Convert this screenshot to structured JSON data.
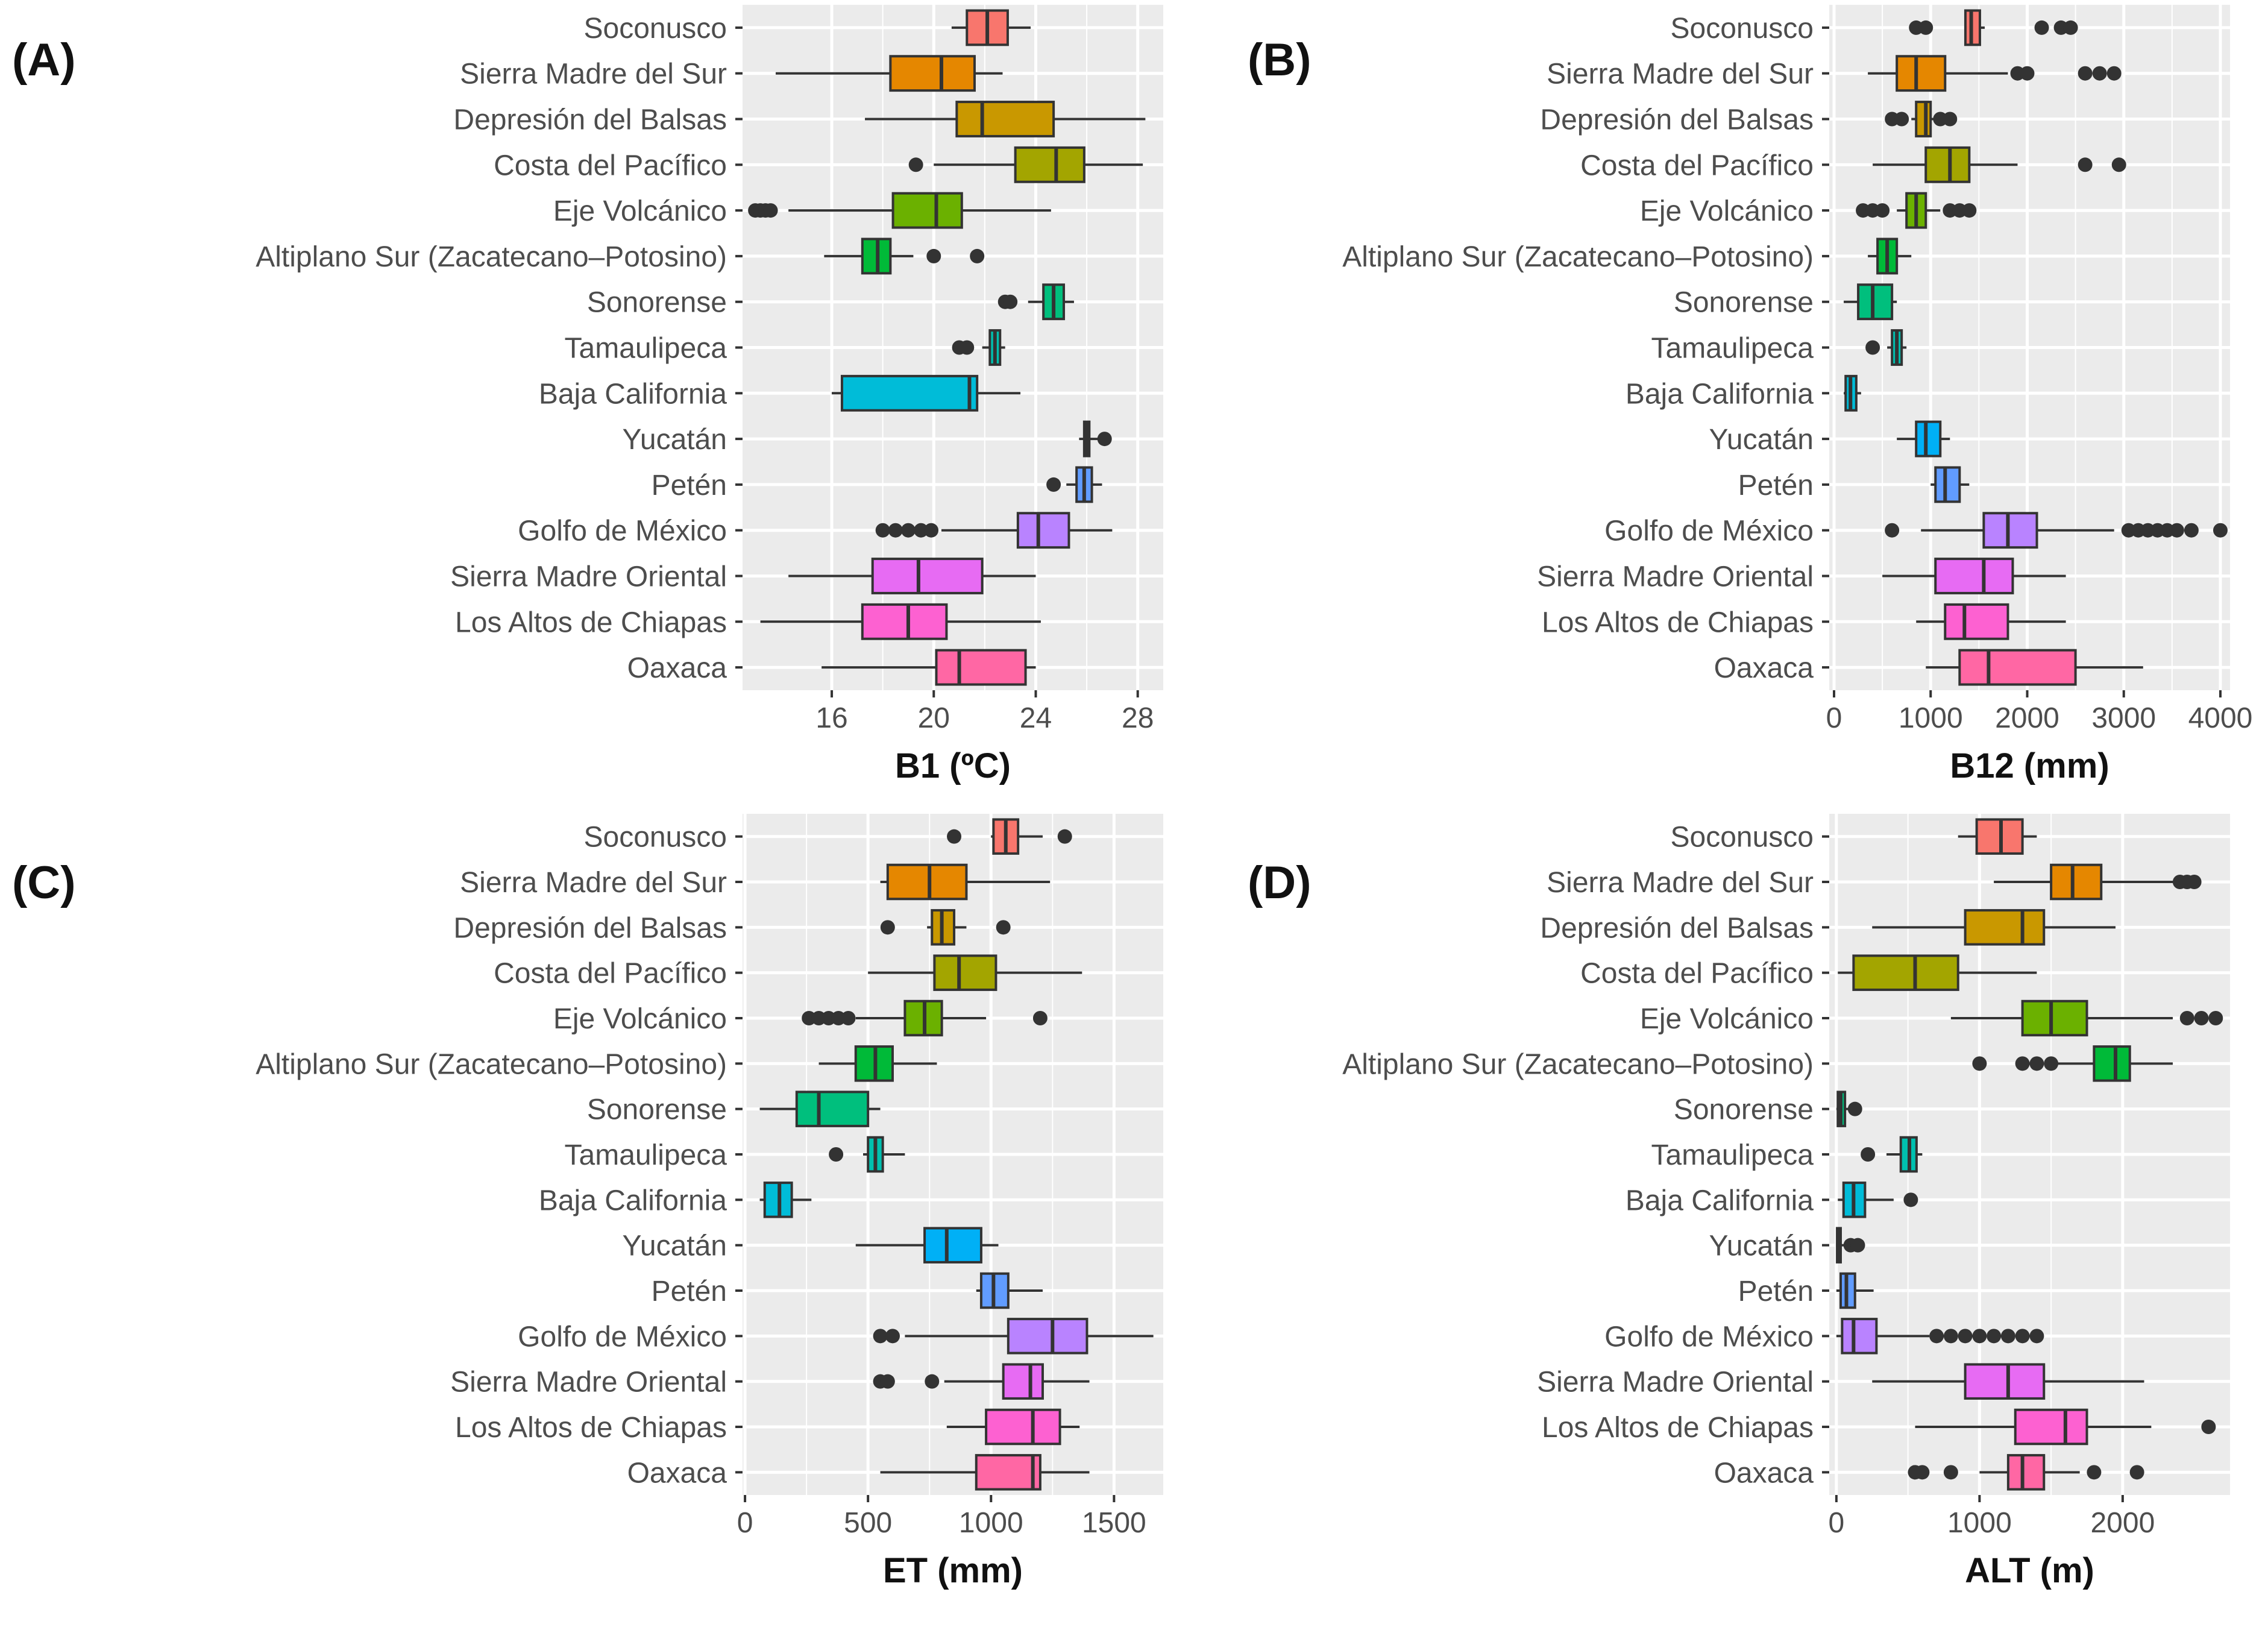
{
  "chart_data": [
    {
      "type": "boxplot",
      "panel": "(A)",
      "orientation": "horizontal",
      "xlabel": "B1 (ºC)",
      "xlim": [
        12.5,
        29
      ],
      "xticks": [
        16,
        20,
        24,
        28
      ],
      "grid": true,
      "categories": [
        "Soconusco",
        "Sierra Madre del Sur",
        "Depresión del Balsas",
        "Costa del Pacífico",
        "Eje Volcánico",
        "Altiplano Sur (Zacatecano–Potosino)",
        "Sonorense",
        "Tamaulipeca",
        "Baja California",
        "Yucatán",
        "Petén",
        "Golfo de México",
        "Sierra Madre Oriental",
        "Los Altos de Chiapas",
        "Oaxaca"
      ],
      "colors": [
        "#F8766D",
        "#E58700",
        "#C99800",
        "#A3A500",
        "#6BB100",
        "#00BA38",
        "#00BF7D",
        "#00C0AF",
        "#00BCD8",
        "#00B0F6",
        "#619CFF",
        "#B983FF",
        "#E76BF3",
        "#FD61D1",
        "#FF67A4"
      ],
      "boxes": [
        {
          "whisker_low": 20.7,
          "q1": 21.3,
          "median": 22.1,
          "q3": 22.9,
          "whisker_high": 23.8,
          "outliers": []
        },
        {
          "whisker_low": 13.8,
          "q1": 18.3,
          "median": 20.3,
          "q3": 21.6,
          "whisker_high": 22.7,
          "outliers": []
        },
        {
          "whisker_low": 17.3,
          "q1": 20.9,
          "median": 21.9,
          "q3": 24.7,
          "whisker_high": 28.3,
          "outliers": []
        },
        {
          "whisker_low": 20.0,
          "q1": 23.2,
          "median": 24.8,
          "q3": 25.9,
          "whisker_high": 28.2,
          "outliers": [
            19.3
          ]
        },
        {
          "whisker_low": 14.3,
          "q1": 18.4,
          "median": 20.1,
          "q3": 21.1,
          "whisker_high": 24.6,
          "outliers": [
            13.0,
            13.2,
            13.4,
            13.6
          ]
        },
        {
          "whisker_low": 15.7,
          "q1": 17.2,
          "median": 17.8,
          "q3": 18.3,
          "whisker_high": 19.2,
          "outliers": [
            20.0,
            21.7
          ]
        },
        {
          "whisker_low": 23.7,
          "q1": 24.3,
          "median": 24.7,
          "q3": 25.1,
          "whisker_high": 25.5,
          "outliers": [
            22.8,
            23.0
          ]
        },
        {
          "whisker_low": 21.9,
          "q1": 22.2,
          "median": 22.4,
          "q3": 22.6,
          "whisker_high": 22.8,
          "outliers": [
            21.0,
            21.3
          ]
        },
        {
          "whisker_low": 16.0,
          "q1": 16.4,
          "median": 21.4,
          "q3": 21.7,
          "whisker_high": 23.4,
          "outliers": []
        },
        {
          "whisker_low": 25.7,
          "q1": 25.9,
          "median": 26.0,
          "q3": 26.1,
          "whisker_high": 26.5,
          "outliers": [
            26.7
          ]
        },
        {
          "whisker_low": 25.2,
          "q1": 25.6,
          "median": 25.9,
          "q3": 26.2,
          "whisker_high": 26.6,
          "outliers": [
            24.7
          ]
        },
        {
          "whisker_low": 20.3,
          "q1": 23.3,
          "median": 24.1,
          "q3": 25.3,
          "whisker_high": 27.0,
          "outliers": [
            18.0,
            18.5,
            19.0,
            19.5,
            19.9
          ]
        },
        {
          "whisker_low": 14.3,
          "q1": 17.6,
          "median": 19.4,
          "q3": 21.9,
          "whisker_high": 24.0,
          "outliers": []
        },
        {
          "whisker_low": 13.2,
          "q1": 17.2,
          "median": 19.0,
          "q3": 20.5,
          "whisker_high": 24.2,
          "outliers": []
        },
        {
          "whisker_low": 15.6,
          "q1": 20.1,
          "median": 21.0,
          "q3": 23.6,
          "whisker_high": 24.0,
          "outliers": []
        }
      ]
    },
    {
      "type": "boxplot",
      "panel": "(B)",
      "orientation": "horizontal",
      "xlabel": "B12 (mm)",
      "xlim": [
        -50,
        4100
      ],
      "xticks": [
        0,
        1000,
        2000,
        3000,
        4000
      ],
      "grid": true,
      "categories": [
        "Soconusco",
        "Sierra Madre del Sur",
        "Depresión del Balsas",
        "Costa del Pacífico",
        "Eje Volcánico",
        "Altiplano Sur (Zacatecano–Potosino)",
        "Sonorense",
        "Tamaulipeca",
        "Baja California",
        "Yucatán",
        "Petén",
        "Golfo de México",
        "Sierra Madre Oriental",
        "Los Altos de Chiapas",
        "Oaxaca"
      ],
      "colors": [
        "#F8766D",
        "#E58700",
        "#C99800",
        "#A3A500",
        "#6BB100",
        "#00BA38",
        "#00BF7D",
        "#00C0AF",
        "#00BCD8",
        "#00B0F6",
        "#619CFF",
        "#B983FF",
        "#E76BF3",
        "#FD61D1",
        "#FF67A4"
      ],
      "boxes": [
        {
          "whisker_low": 1350,
          "q1": 1360,
          "median": 1420,
          "q3": 1510,
          "whisker_high": 1560,
          "outliers": [
            850,
            950,
            2150,
            2350,
            2450
          ]
        },
        {
          "whisker_low": 350,
          "q1": 650,
          "median": 850,
          "q3": 1150,
          "whisker_high": 1800,
          "outliers": [
            1900,
            2000,
            2600,
            2750,
            2900
          ]
        },
        {
          "whisker_low": 800,
          "q1": 850,
          "median": 950,
          "q3": 1000,
          "whisker_high": 1050,
          "outliers": [
            600,
            700,
            1100,
            1200
          ]
        },
        {
          "whisker_low": 400,
          "q1": 950,
          "median": 1200,
          "q3": 1400,
          "whisker_high": 1900,
          "outliers": [
            2600,
            2950
          ]
        },
        {
          "whisker_low": 650,
          "q1": 750,
          "median": 850,
          "q3": 950,
          "whisker_high": 1100,
          "outliers": [
            300,
            400,
            500,
            1200,
            1300,
            1400
          ]
        },
        {
          "whisker_low": 350,
          "q1": 450,
          "median": 550,
          "q3": 650,
          "whisker_high": 800,
          "outliers": []
        },
        {
          "whisker_low": 100,
          "q1": 250,
          "median": 400,
          "q3": 600,
          "whisker_high": 650,
          "outliers": []
        },
        {
          "whisker_low": 550,
          "q1": 600,
          "median": 650,
          "q3": 700,
          "whisker_high": 750,
          "outliers": [
            400
          ]
        },
        {
          "whisker_low": 100,
          "q1": 120,
          "median": 170,
          "q3": 230,
          "whisker_high": 280,
          "outliers": []
        },
        {
          "whisker_low": 650,
          "q1": 850,
          "median": 950,
          "q3": 1100,
          "whisker_high": 1200,
          "outliers": []
        },
        {
          "whisker_low": 1000,
          "q1": 1050,
          "median": 1150,
          "q3": 1300,
          "whisker_high": 1400,
          "outliers": []
        },
        {
          "whisker_low": 900,
          "q1": 1550,
          "median": 1800,
          "q3": 2100,
          "whisker_high": 2900,
          "outliers": [
            600,
            3050,
            3150,
            3250,
            3350,
            3450,
            3550,
            3700,
            4000
          ]
        },
        {
          "whisker_low": 500,
          "q1": 1050,
          "median": 1550,
          "q3": 1850,
          "whisker_high": 2400,
          "outliers": []
        },
        {
          "whisker_low": 850,
          "q1": 1150,
          "median": 1350,
          "q3": 1800,
          "whisker_high": 2400,
          "outliers": []
        },
        {
          "whisker_low": 950,
          "q1": 1300,
          "median": 1600,
          "q3": 2500,
          "whisker_high": 3200,
          "outliers": []
        }
      ]
    },
    {
      "type": "boxplot",
      "panel": "(C)",
      "orientation": "horizontal",
      "xlabel": "ET (mm)",
      "xlim": [
        -10,
        1700
      ],
      "xticks": [
        0,
        500,
        1000,
        1500
      ],
      "grid": true,
      "categories": [
        "Soconusco",
        "Sierra Madre del Sur",
        "Depresión del Balsas",
        "Costa del Pacífico",
        "Eje Volcánico",
        "Altiplano Sur (Zacatecano–Potosino)",
        "Sonorense",
        "Tamaulipeca",
        "Baja California",
        "Yucatán",
        "Petén",
        "Golfo de México",
        "Sierra Madre Oriental",
        "Los Altos de Chiapas",
        "Oaxaca"
      ],
      "colors": [
        "#F8766D",
        "#E58700",
        "#C99800",
        "#A3A500",
        "#6BB100",
        "#00BA38",
        "#00BF7D",
        "#00C0AF",
        "#00BCD8",
        "#00B0F6",
        "#619CFF",
        "#B983FF",
        "#E76BF3",
        "#FD61D1",
        "#FF67A4"
      ],
      "boxes": [
        {
          "whisker_low": 1000,
          "q1": 1010,
          "median": 1060,
          "q3": 1110,
          "whisker_high": 1210,
          "outliers": [
            850,
            1300
          ]
        },
        {
          "whisker_low": 550,
          "q1": 580,
          "median": 750,
          "q3": 900,
          "whisker_high": 1240,
          "outliers": []
        },
        {
          "whisker_low": 740,
          "q1": 760,
          "median": 800,
          "q3": 850,
          "whisker_high": 900,
          "outliers": [
            580,
            1050
          ]
        },
        {
          "whisker_low": 500,
          "q1": 770,
          "median": 870,
          "q3": 1020,
          "whisker_high": 1370,
          "outliers": []
        },
        {
          "whisker_low": 450,
          "q1": 650,
          "median": 730,
          "q3": 800,
          "whisker_high": 980,
          "outliers": [
            260,
            300,
            340,
            380,
            420,
            1200
          ]
        },
        {
          "whisker_low": 300,
          "q1": 450,
          "median": 530,
          "q3": 600,
          "whisker_high": 780,
          "outliers": []
        },
        {
          "whisker_low": 60,
          "q1": 210,
          "median": 300,
          "q3": 500,
          "whisker_high": 550,
          "outliers": []
        },
        {
          "whisker_low": 480,
          "q1": 500,
          "median": 530,
          "q3": 560,
          "whisker_high": 650,
          "outliers": [
            370
          ]
        },
        {
          "whisker_low": 60,
          "q1": 80,
          "median": 140,
          "q3": 190,
          "whisker_high": 270,
          "outliers": []
        },
        {
          "whisker_low": 450,
          "q1": 730,
          "median": 820,
          "q3": 960,
          "whisker_high": 1030,
          "outliers": []
        },
        {
          "whisker_low": 940,
          "q1": 960,
          "median": 1010,
          "q3": 1070,
          "whisker_high": 1210,
          "outliers": []
        },
        {
          "whisker_low": 650,
          "q1": 1070,
          "median": 1250,
          "q3": 1390,
          "whisker_high": 1660,
          "outliers": [
            550,
            600
          ]
        },
        {
          "whisker_low": 810,
          "q1": 1050,
          "median": 1160,
          "q3": 1210,
          "whisker_high": 1400,
          "outliers": [
            550,
            580,
            760
          ]
        },
        {
          "whisker_low": 820,
          "q1": 980,
          "median": 1170,
          "q3": 1280,
          "whisker_high": 1360,
          "outliers": []
        },
        {
          "whisker_low": 550,
          "q1": 940,
          "median": 1170,
          "q3": 1200,
          "whisker_high": 1400,
          "outliers": []
        }
      ]
    },
    {
      "type": "boxplot",
      "panel": "(D)",
      "orientation": "horizontal",
      "xlabel": "ALT (m)",
      "xlim": [
        -50,
        2750
      ],
      "xticks": [
        0,
        1000,
        2000
      ],
      "grid": true,
      "categories": [
        "Soconusco",
        "Sierra Madre del Sur",
        "Depresión del Balsas",
        "Costa del Pacífico",
        "Eje Volcánico",
        "Altiplano Sur (Zacatecano–Potosino)",
        "Sonorense",
        "Tamaulipeca",
        "Baja California",
        "Yucatán",
        "Petén",
        "Golfo de México",
        "Sierra Madre Oriental",
        "Los Altos de Chiapas",
        "Oaxaca"
      ],
      "colors": [
        "#F8766D",
        "#E58700",
        "#C99800",
        "#A3A500",
        "#6BB100",
        "#00BA38",
        "#00BF7D",
        "#00C0AF",
        "#00BCD8",
        "#00B0F6",
        "#619CFF",
        "#B983FF",
        "#E76BF3",
        "#FD61D1",
        "#FF67A4"
      ],
      "boxes": [
        {
          "whisker_low": 850,
          "q1": 980,
          "median": 1150,
          "q3": 1300,
          "whisker_high": 1400,
          "outliers": []
        },
        {
          "whisker_low": 1100,
          "q1": 1500,
          "median": 1650,
          "q3": 1850,
          "whisker_high": 2350,
          "outliers": [
            2400,
            2450,
            2500
          ]
        },
        {
          "whisker_low": 250,
          "q1": 900,
          "median": 1300,
          "q3": 1450,
          "whisker_high": 1950,
          "outliers": []
        },
        {
          "whisker_low": 10,
          "q1": 120,
          "median": 550,
          "q3": 850,
          "whisker_high": 1400,
          "outliers": []
        },
        {
          "whisker_low": 800,
          "q1": 1300,
          "median": 1500,
          "q3": 1750,
          "whisker_high": 2350,
          "outliers": [
            2450,
            2550,
            2650
          ]
        },
        {
          "whisker_low": 1550,
          "q1": 1800,
          "median": 1950,
          "q3": 2050,
          "whisker_high": 2350,
          "outliers": [
            1000,
            1300,
            1400,
            1500
          ]
        },
        {
          "whisker_low": 0,
          "q1": 10,
          "median": 30,
          "q3": 60,
          "whisker_high": 90,
          "outliers": [
            130
          ]
        },
        {
          "whisker_low": 350,
          "q1": 450,
          "median": 510,
          "q3": 560,
          "whisker_high": 600,
          "outliers": [
            220
          ]
        },
        {
          "whisker_low": 10,
          "q1": 50,
          "median": 120,
          "q3": 200,
          "whisker_high": 400,
          "outliers": [
            520
          ]
        },
        {
          "whisker_low": 0,
          "q1": 5,
          "median": 15,
          "q3": 30,
          "whisker_high": 60,
          "outliers": [
            100,
            150
          ]
        },
        {
          "whisker_low": 0,
          "q1": 30,
          "median": 70,
          "q3": 130,
          "whisker_high": 260,
          "outliers": []
        },
        {
          "whisker_low": 0,
          "q1": 40,
          "median": 120,
          "q3": 280,
          "whisker_high": 650,
          "outliers": [
            700,
            800,
            900,
            1000,
            1100,
            1200,
            1300,
            1400
          ]
        },
        {
          "whisker_low": 250,
          "q1": 900,
          "median": 1200,
          "q3": 1450,
          "whisker_high": 2150,
          "outliers": []
        },
        {
          "whisker_low": 550,
          "q1": 1250,
          "median": 1600,
          "q3": 1750,
          "whisker_high": 2200,
          "outliers": [
            2600
          ]
        },
        {
          "whisker_low": 1000,
          "q1": 1200,
          "median": 1300,
          "q3": 1450,
          "whisker_high": 1700,
          "outliers": [
            550,
            600,
            800,
            1800,
            2100
          ]
        }
      ]
    }
  ]
}
